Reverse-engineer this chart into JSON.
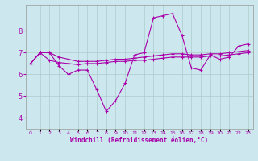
{
  "xlabel": "Windchill (Refroidissement éolien,°C)",
  "x_ticks": [
    0,
    1,
    2,
    3,
    4,
    5,
    6,
    7,
    8,
    9,
    10,
    11,
    12,
    13,
    14,
    15,
    16,
    17,
    18,
    19,
    20,
    21,
    22,
    23
  ],
  "ylim": [
    3.5,
    9.2
  ],
  "yticks": [
    4,
    5,
    6,
    7,
    8
  ],
  "line_color": "#aa00aa",
  "bg_color": "#cce8ee",
  "grid_color": "#aacccc",
  "line1": [
    6.5,
    7.0,
    7.0,
    6.4,
    6.0,
    6.2,
    6.2,
    5.3,
    4.3,
    4.8,
    5.6,
    6.9,
    7.0,
    8.6,
    8.7,
    8.8,
    7.8,
    6.3,
    6.2,
    6.9,
    6.7,
    6.8,
    7.3,
    7.4
  ],
  "line2": [
    6.5,
    7.0,
    7.0,
    6.8,
    6.7,
    6.6,
    6.6,
    6.6,
    6.65,
    6.7,
    6.7,
    6.75,
    6.8,
    6.85,
    6.9,
    6.95,
    6.95,
    6.9,
    6.9,
    6.95,
    6.95,
    7.0,
    7.05,
    7.1
  ],
  "line3": [
    6.5,
    7.0,
    6.65,
    6.55,
    6.5,
    6.45,
    6.5,
    6.5,
    6.55,
    6.6,
    6.6,
    6.65,
    6.65,
    6.7,
    6.75,
    6.8,
    6.8,
    6.8,
    6.8,
    6.85,
    6.85,
    6.9,
    6.95,
    7.0
  ]
}
